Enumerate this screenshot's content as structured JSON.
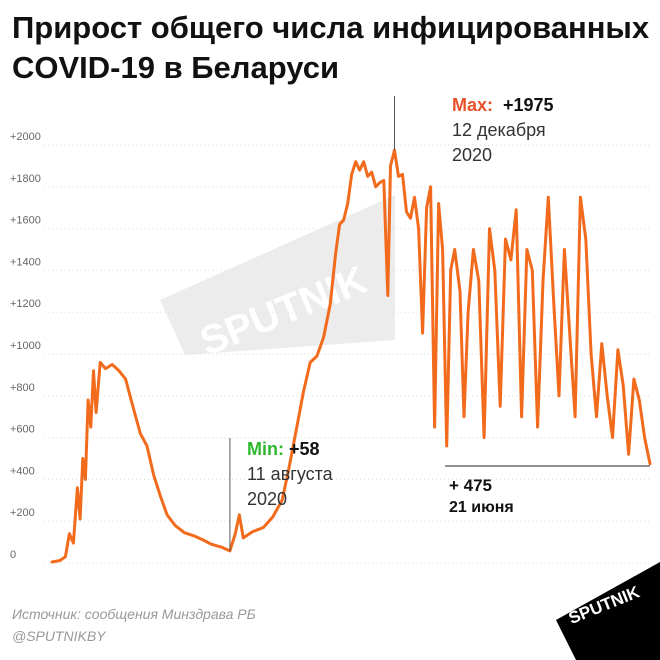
{
  "title": "Прирост общего числа инфицированных COVID-19 в Беларуси",
  "source": "Источник: сообщения Минздрава РБ",
  "handle": "@SPUTNIKBY",
  "brand": "SPUTNIK",
  "colors": {
    "line": "#f26b1d",
    "max_label": "#e8502a",
    "min_label": "#2eb82e",
    "axis_text": "#666666",
    "grid": "#dddddd",
    "text": "#111111",
    "watermark": "#ececec",
    "logo_bg": "#000000",
    "logo_text": "#ffffff"
  },
  "chart_data": {
    "type": "line",
    "ylim": [
      0,
      2100
    ],
    "yticks": [
      0,
      200,
      400,
      600,
      800,
      1000,
      1200,
      1400,
      1600,
      1800,
      2000
    ],
    "ytick_labels": [
      "0",
      "+200",
      "+400",
      "+600",
      "+800",
      "+1000",
      "+1200",
      "+1400",
      "+1600",
      "+1800",
      "+2000"
    ],
    "grid": true,
    "x_start": "2020-03-31",
    "x_end": "2021-06-21",
    "series": [
      {
        "points": [
          [
            "2020-03-31",
            5
          ],
          [
            "2020-04-06",
            12
          ],
          [
            "2020-04-10",
            30
          ],
          [
            "2020-04-13",
            140
          ],
          [
            "2020-04-16",
            95
          ],
          [
            "2020-04-19",
            360
          ],
          [
            "2020-04-21",
            210
          ],
          [
            "2020-04-23",
            500
          ],
          [
            "2020-04-25",
            400
          ],
          [
            "2020-04-27",
            780
          ],
          [
            "2020-04-29",
            650
          ],
          [
            "2020-05-01",
            920
          ],
          [
            "2020-05-03",
            720
          ],
          [
            "2020-05-06",
            960
          ],
          [
            "2020-05-10",
            930
          ],
          [
            "2020-05-15",
            950
          ],
          [
            "2020-05-20",
            920
          ],
          [
            "2020-05-25",
            880
          ],
          [
            "2020-05-30",
            760
          ],
          [
            "2020-06-05",
            620
          ],
          [
            "2020-06-10",
            560
          ],
          [
            "2020-06-15",
            420
          ],
          [
            "2020-06-20",
            320
          ],
          [
            "2020-06-25",
            230
          ],
          [
            "2020-07-01",
            180
          ],
          [
            "2020-07-08",
            145
          ],
          [
            "2020-07-15",
            130
          ],
          [
            "2020-07-22",
            110
          ],
          [
            "2020-07-28",
            90
          ],
          [
            "2020-08-05",
            75
          ],
          [
            "2020-08-11",
            58
          ],
          [
            "2020-08-15",
            140
          ],
          [
            "2020-08-18",
            230
          ],
          [
            "2020-08-21",
            120
          ],
          [
            "2020-08-28",
            150
          ],
          [
            "2020-09-05",
            170
          ],
          [
            "2020-09-12",
            220
          ],
          [
            "2020-09-19",
            300
          ],
          [
            "2020-09-24",
            450
          ],
          [
            "2020-09-30",
            650
          ],
          [
            "2020-10-05",
            820
          ],
          [
            "2020-10-10",
            960
          ],
          [
            "2020-10-15",
            990
          ],
          [
            "2020-10-20",
            1080
          ],
          [
            "2020-10-25",
            1240
          ],
          [
            "2020-10-29",
            1480
          ],
          [
            "2020-11-01",
            1620
          ],
          [
            "2020-11-04",
            1640
          ],
          [
            "2020-11-07",
            1720
          ],
          [
            "2020-11-10",
            1860
          ],
          [
            "2020-11-13",
            1920
          ],
          [
            "2020-11-16",
            1880
          ],
          [
            "2020-11-19",
            1920
          ],
          [
            "2020-11-22",
            1850
          ],
          [
            "2020-11-25",
            1870
          ],
          [
            "2020-11-28",
            1800
          ],
          [
            "2020-12-01",
            1820
          ],
          [
            "2020-12-04",
            1830
          ],
          [
            "2020-12-07",
            1280
          ],
          [
            "2020-12-09",
            1900
          ],
          [
            "2020-12-12",
            1975
          ],
          [
            "2020-12-15",
            1850
          ],
          [
            "2020-12-18",
            1860
          ],
          [
            "2020-12-21",
            1680
          ],
          [
            "2020-12-24",
            1650
          ],
          [
            "2020-12-27",
            1750
          ],
          [
            "2020-12-30",
            1600
          ],
          [
            "2021-01-02",
            1100
          ],
          [
            "2021-01-05",
            1700
          ],
          [
            "2021-01-08",
            1800
          ],
          [
            "2021-01-11",
            650
          ],
          [
            "2021-01-14",
            1720
          ],
          [
            "2021-01-17",
            1500
          ],
          [
            "2021-01-20",
            560
          ],
          [
            "2021-01-23",
            1400
          ],
          [
            "2021-01-26",
            1500
          ],
          [
            "2021-01-30",
            1300
          ],
          [
            "2021-02-02",
            700
          ],
          [
            "2021-02-05",
            1200
          ],
          [
            "2021-02-09",
            1500
          ],
          [
            "2021-02-13",
            1350
          ],
          [
            "2021-02-17",
            600
          ],
          [
            "2021-02-21",
            1600
          ],
          [
            "2021-02-25",
            1400
          ],
          [
            "2021-03-01",
            750
          ],
          [
            "2021-03-05",
            1550
          ],
          [
            "2021-03-09",
            1450
          ],
          [
            "2021-03-13",
            1690
          ],
          [
            "2021-03-17",
            700
          ],
          [
            "2021-03-21",
            1500
          ],
          [
            "2021-03-25",
            1400
          ],
          [
            "2021-03-29",
            650
          ],
          [
            "2021-04-02",
            1350
          ],
          [
            "2021-04-06",
            1750
          ],
          [
            "2021-04-10",
            1250
          ],
          [
            "2021-04-14",
            800
          ],
          [
            "2021-04-18",
            1500
          ],
          [
            "2021-04-22",
            1100
          ],
          [
            "2021-04-26",
            700
          ],
          [
            "2021-04-30",
            1750
          ],
          [
            "2021-05-04",
            1550
          ],
          [
            "2021-05-08",
            1000
          ],
          [
            "2021-05-12",
            700
          ],
          [
            "2021-05-16",
            1050
          ],
          [
            "2021-05-20",
            800
          ],
          [
            "2021-05-24",
            600
          ],
          [
            "2021-05-28",
            1020
          ],
          [
            "2021-06-01",
            850
          ],
          [
            "2021-06-05",
            520
          ],
          [
            "2021-06-09",
            880
          ],
          [
            "2021-06-13",
            780
          ],
          [
            "2021-06-17",
            600
          ],
          [
            "2021-06-21",
            475
          ]
        ]
      }
    ],
    "annotations": {
      "max": {
        "date": "2020-12-12",
        "value": 1975,
        "label": "Max:",
        "value_text": "+1975",
        "date_line1": "12 декабря",
        "date_line2": "2020"
      },
      "min": {
        "date": "2020-08-11",
        "value": 58,
        "label": "Min:",
        "value_text": "+58",
        "date_line1": "11 августа",
        "date_line2": "2020"
      },
      "last": {
        "date": "2021-06-21",
        "value": 475,
        "value_text": "+ 475",
        "date_text": "21 июня"
      }
    }
  }
}
